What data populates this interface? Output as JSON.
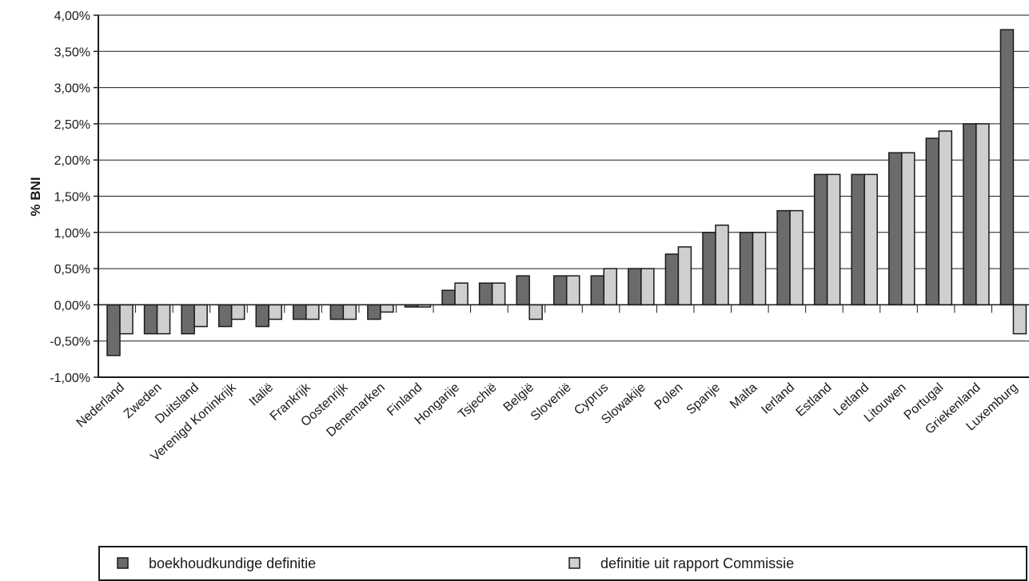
{
  "chart_data": {
    "type": "bar",
    "title": "",
    "xlabel": "",
    "ylabel": "% BNI",
    "ylim": [
      -1.0,
      4.0
    ],
    "y_ticks": [
      {
        "value": -1.0,
        "label": "-1,00%"
      },
      {
        "value": -0.5,
        "label": "-0,50%"
      },
      {
        "value": 0.0,
        "label": "0,00%"
      },
      {
        "value": 0.5,
        "label": "0,50%"
      },
      {
        "value": 1.0,
        "label": "1,00%"
      },
      {
        "value": 1.5,
        "label": "1,50%"
      },
      {
        "value": 2.0,
        "label": "2,00%"
      },
      {
        "value": 2.5,
        "label": "2,50%"
      },
      {
        "value": 3.0,
        "label": "3,00%"
      },
      {
        "value": 3.5,
        "label": "3,50%"
      },
      {
        "value": 4.0,
        "label": "4,00%"
      }
    ],
    "grid": true,
    "legend_position": "bottom",
    "categories": [
      "Nederland",
      "Zweden",
      "Duitsland",
      "Verenigd Koninkrijk",
      "Italië",
      "Frankrijk",
      "Oostenrijk",
      "Denemarken",
      "Finland",
      "Hongarije",
      "Tsjechië",
      "België",
      "Slovenië",
      "Cyprus",
      "Slowakije",
      "Polen",
      "Spanje",
      "Malta",
      "Ierland",
      "Estland",
      "Letland",
      "Litouwen",
      "Portugal",
      "Griekenland",
      "Luxemburg"
    ],
    "series": [
      {
        "name": "boekhoudkundige definitie",
        "color": "#6b6b6b",
        "values": [
          -0.7,
          -0.4,
          -0.4,
          -0.3,
          -0.3,
          -0.2,
          -0.2,
          -0.2,
          -0.03,
          0.2,
          0.3,
          0.4,
          0.4,
          0.4,
          0.5,
          0.7,
          1.0,
          1.0,
          1.3,
          1.8,
          1.8,
          2.1,
          2.3,
          2.5,
          3.8
        ]
      },
      {
        "name": "definitie uit rapport Commissie",
        "color": "#cfcfcf",
        "values": [
          -0.4,
          -0.4,
          -0.3,
          -0.2,
          -0.2,
          -0.2,
          -0.2,
          -0.1,
          -0.03,
          0.3,
          0.3,
          -0.2,
          0.4,
          0.5,
          0.5,
          0.8,
          1.1,
          1.0,
          1.3,
          1.8,
          1.8,
          2.1,
          2.4,
          2.5,
          -0.4
        ]
      }
    ]
  }
}
